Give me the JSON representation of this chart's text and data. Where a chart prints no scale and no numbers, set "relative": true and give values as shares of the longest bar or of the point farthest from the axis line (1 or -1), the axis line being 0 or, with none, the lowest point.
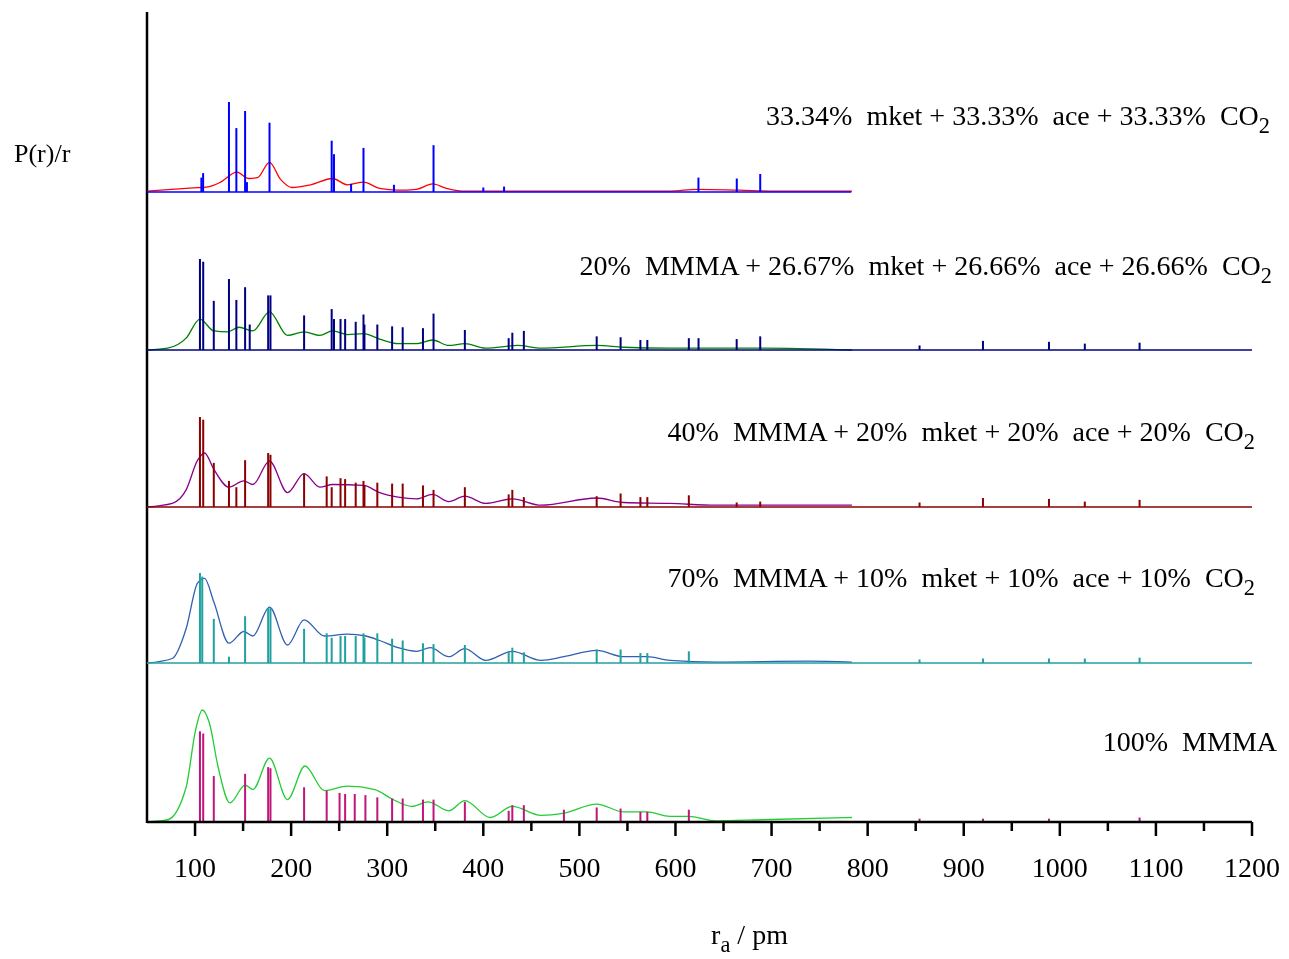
{
  "chart_data": [
    {
      "type": "bar",
      "relative": true,
      "ylabel": "P(r)/r",
      "xlim": [
        50,
        1200
      ],
      "tick_labels": false,
      "annotations": [
        "33.34%  mket + 33.33%  ace + 33.33%  CO$_{2}$"
      ],
      "series": [
        {
          "color": "#0000ff",
          "x": [
            106.6,
            108.4,
            135.3,
            143,
            152.1,
            154,
            177.5,
            242.2,
            244.6,
            262.4,
            275.3,
            307,
            348.2,
            400,
            421.6,
            623.9,
            663.8,
            688.2
          ],
          "values": [
            0.16,
            0.21,
            1.0,
            0.71,
            0.9,
            0.11,
            0.77,
            0.57,
            0.42,
            0.09,
            0.49,
            0.08,
            0.52,
            0.05,
            0.06,
            0.16,
            0.15,
            0.2
          ]
        },
        {
          "type": "line",
          "color": "#ff0000",
          "x": [
            50,
            90.7,
            114.7,
            126.7,
            143.5,
            155.5,
            165,
            177.5,
            189,
            201,
            220.2,
            243.2,
            258.5,
            275.3,
            292.1,
            311.3,
            330.5,
            347.3,
            361.6,
            378.4,
            426.4,
            594.2,
            623,
            666.1,
            704.5,
            783.6
          ],
          "values": [
            0.01,
            0.04,
            0.06,
            0.11,
            0.22,
            0.15,
            0.16,
            0.33,
            0.14,
            0.05,
            0.08,
            0.15,
            0.08,
            0.11,
            0.04,
            0.02,
            0.03,
            0.09,
            0.04,
            0.01,
            0.01,
            0.01,
            0.03,
            0.02,
            0.01,
            0.01
          ]
        }
      ]
    },
    {
      "type": "bar",
      "relative": true,
      "xlim": [
        50,
        1200
      ],
      "tick_labels": false,
      "annotations": [
        "20%  MMMA + 26.67%  mket + 26.66%  ace + 26.66%  CO$_{2}$"
      ],
      "series": [
        {
          "color": "#000080",
          "x": [
            105.1,
            108.5,
            119.5,
            135.3,
            143,
            152.1,
            156.9,
            176.1,
            178.5,
            213.5,
            242.2,
            244.6,
            251.4,
            256.2,
            267.2,
            275.3,
            276.3,
            289.7,
            305.1,
            316.1,
            337.2,
            348.2,
            380.8,
            426.4,
            430.2,
            442.2,
            518,
            542.9,
            563.5,
            570.7,
            613.9,
            624,
            663.7,
            688.2,
            854,
            920,
            988.7,
            1026,
            1083
          ],
          "values": [
            1.0,
            0.97,
            0.54,
            0.78,
            0.55,
            0.69,
            0.28,
            0.6,
            0.6,
            0.38,
            0.45,
            0.34,
            0.34,
            0.34,
            0.31,
            0.39,
            0.28,
            0.28,
            0.26,
            0.25,
            0.24,
            0.4,
            0.22,
            0.13,
            0.19,
            0.21,
            0.15,
            0.14,
            0.11,
            0.11,
            0.13,
            0.13,
            0.12,
            0.15,
            0.05,
            0.1,
            0.09,
            0.07,
            0.08
          ]
        },
        {
          "type": "line",
          "color": "#008000",
          "x": [
            50,
            71.5,
            90.7,
            105.1,
            119.5,
            133.9,
            145.9,
            160.2,
            177.5,
            196.2,
            213.5,
            229.8,
            243.2,
            258.5,
            275.3,
            292.1,
            311.3,
            330.5,
            347.3,
            364,
            380.8,
            402.4,
            436,
            460,
            518,
            546.2,
            594.2,
            642.2,
            690.1,
            783.6
          ],
          "values": [
            0,
            0.02,
            0.13,
            0.34,
            0.21,
            0.2,
            0.25,
            0.21,
            0.42,
            0.16,
            0.2,
            0.16,
            0.21,
            0.17,
            0.18,
            0.12,
            0.07,
            0.07,
            0.11,
            0.05,
            0.07,
            0.02,
            0.05,
            0.02,
            0.05,
            0.03,
            0.02,
            0.02,
            0.02,
            0
          ]
        }
      ]
    },
    {
      "type": "bar",
      "relative": true,
      "xlim": [
        50,
        1200
      ],
      "tick_labels": false,
      "annotations": [
        "40%  MMMA + 20%  mket + 20%  ace + 20%  CO$_{2}$"
      ],
      "series": [
        {
          "color": "#8b0000",
          "x": [
            105.1,
            108.5,
            119.5,
            135.3,
            143,
            152.1,
            176.1,
            178.5,
            213.5,
            237,
            242.2,
            251.4,
            256.2,
            267.2,
            275.3,
            276.3,
            289.7,
            305.1,
            316.1,
            337.2,
            348.2,
            380.8,
            426.4,
            430.2,
            442.2,
            518,
            542.9,
            563.5,
            570.7,
            613.9,
            663.7,
            688.2,
            854,
            920,
            988.7,
            1026,
            1083
          ],
          "values": [
            1.0,
            0.97,
            0.49,
            0.29,
            0.22,
            0.52,
            0.6,
            0.58,
            0.37,
            0.34,
            0.22,
            0.32,
            0.31,
            0.27,
            0.29,
            0.24,
            0.27,
            0.26,
            0.26,
            0.24,
            0.19,
            0.22,
            0.14,
            0.19,
            0.11,
            0.12,
            0.15,
            0.11,
            0.11,
            0.13,
            0.05,
            0.06,
            0.05,
            0.1,
            0.09,
            0.06,
            0.08
          ]
        },
        {
          "type": "line",
          "color": "#8b008b",
          "x": [
            50,
            76.3,
            90.7,
            102.7,
            109.9,
            119.5,
            135.3,
            150.7,
            160.2,
            177.5,
            196.2,
            213.5,
            229.8,
            243.2,
            275.3,
            292.1,
            311.3,
            330.5,
            347.3,
            364,
            380.8,
            402.4,
            430.2,
            460,
            518,
            546.2,
            594.2,
            642.2,
            738.1,
            783.6
          ],
          "values": [
            0,
            0.04,
            0.19,
            0.52,
            0.6,
            0.42,
            0.22,
            0.29,
            0.25,
            0.51,
            0.16,
            0.37,
            0.22,
            0.25,
            0.24,
            0.16,
            0.11,
            0.09,
            0.14,
            0.06,
            0.12,
            0.04,
            0.09,
            0.02,
            0.1,
            0.05,
            0.04,
            0.02,
            0.02,
            0.02
          ]
        }
      ]
    },
    {
      "type": "bar",
      "relative": true,
      "xlim": [
        50,
        1200
      ],
      "tick_labels": false,
      "annotations": [
        "70%  MMMA + 10%  mket + 10%  ace + 10%  CO$_{2}$"
      ],
      "series": [
        {
          "color": "#20a0a0",
          "x": [
            105.1,
            107.5,
            119.5,
            135.3,
            152.1,
            176.1,
            178.5,
            213.5,
            237,
            242.2,
            251.4,
            256.2,
            267.2,
            275.3,
            276.3,
            289.7,
            305.1,
            316.1,
            337.2,
            348.2,
            380.8,
            426.4,
            430.2,
            442.2,
            518,
            542.9,
            563.5,
            570.7,
            613.9,
            854,
            920,
            988.7,
            1026,
            1083
          ],
          "values": [
            1.0,
            0.96,
            0.49,
            0.07,
            0.52,
            0.61,
            0.61,
            0.38,
            0.33,
            0.28,
            0.3,
            0.3,
            0.3,
            0.33,
            0.28,
            0.33,
            0.27,
            0.25,
            0.22,
            0.21,
            0.2,
            0.13,
            0.17,
            0.12,
            0.15,
            0.15,
            0.11,
            0.11,
            0.13,
            0.04,
            0.05,
            0.05,
            0.05,
            0.06
          ]
        },
        {
          "type": "line",
          "color": "#3060b0",
          "x": [
            50,
            76.3,
            90.7,
            102.7,
            109.9,
            119.5,
            135.3,
            150.7,
            160.2,
            177.5,
            196.2,
            213.5,
            234.6,
            258.5,
            277.7,
            292.1,
            311.3,
            330.5,
            344.9,
            364,
            380.8,
            402.4,
            430.2,
            460,
            483.9,
            518,
            546.2,
            570.2,
            594.2,
            642.2,
            738.1,
            783.6
          ],
          "values": [
            0,
            0.05,
            0.38,
            0.89,
            0.94,
            0.68,
            0.22,
            0.35,
            0.3,
            0.62,
            0.2,
            0.48,
            0.3,
            0.32,
            0.3,
            0.25,
            0.17,
            0.13,
            0.17,
            0.07,
            0.16,
            0.03,
            0.13,
            0.03,
            0.07,
            0.14,
            0.07,
            0.07,
            0.03,
            0.01,
            0.02,
            0.01
          ]
        }
      ]
    },
    {
      "type": "bar",
      "relative": true,
      "xlabel": "r$_{a}$ / pm",
      "xlim": [
        50,
        1200
      ],
      "tick_labels": "x",
      "annotations": [
        "100%  MMMA"
      ],
      "xticks": [
        100,
        {
          "value": 150,
          "label": null
        },
        200,
        {
          "value": 250,
          "label": null
        },
        300,
        {
          "value": 350,
          "label": null
        },
        400,
        {
          "value": 450,
          "label": null
        },
        500,
        {
          "value": 550,
          "label": null
        },
        600,
        {
          "value": 650,
          "label": null
        },
        700,
        {
          "value": 750,
          "label": null
        },
        800,
        {
          "value": 850,
          "label": null
        },
        900,
        {
          "value": 950,
          "label": null
        },
        1000,
        {
          "value": 1050,
          "label": null
        },
        1100,
        {
          "value": 1150,
          "label": null
        },
        1200
      ],
      "series": [
        {
          "color": "#c0157a",
          "x": [
            105.1,
            108.5,
            119.5,
            152.1,
            176.1,
            178.5,
            213.5,
            237,
            250.4,
            256.2,
            266.2,
            277.3,
            289.7,
            305.1,
            316.1,
            337.2,
            348.2,
            380.8,
            426.4,
            430.2,
            442.2,
            483.9,
            518,
            542.9,
            563.5,
            570.7,
            613.9,
            854,
            920,
            988.7,
            1083
          ],
          "values": [
            0.81,
            0.79,
            0.41,
            0.43,
            0.49,
            0.48,
            0.31,
            0.28,
            0.26,
            0.25,
            0.25,
            0.24,
            0.22,
            0.21,
            0.21,
            0.2,
            0.2,
            0.18,
            0.1,
            0.15,
            0.15,
            0.11,
            0.13,
            0.12,
            0.09,
            0.09,
            0.11,
            0.03,
            0.03,
            0.03,
            0.04
          ]
        },
        {
          "type": "line",
          "color": "#22cc33",
          "x": [
            50,
            71.5,
            90.7,
            100.3,
            107.5,
            114.7,
            124.3,
            136.3,
            152.1,
            160.2,
            177.5,
            196.2,
            214.4,
            234.6,
            258.5,
            287.3,
            304.1,
            325.7,
            342.5,
            364,
            380.8,
            407.2,
            430.2,
            460,
            483.9,
            518,
            546.2,
            570.2,
            594.2,
            613.4,
            642.2,
            690.1,
            783.6
          ],
          "values": [
            0,
            0.02,
            0.31,
            0.81,
            1.0,
            0.89,
            0.48,
            0.17,
            0.33,
            0.29,
            0.57,
            0.2,
            0.5,
            0.28,
            0.32,
            0.29,
            0.21,
            0.14,
            0.18,
            0.1,
            0.19,
            0.04,
            0.14,
            0.06,
            0.08,
            0.16,
            0.09,
            0.09,
            0.05,
            0.05,
            0.01,
            0.02,
            0.04
          ]
        }
      ]
    }
  ]
}
